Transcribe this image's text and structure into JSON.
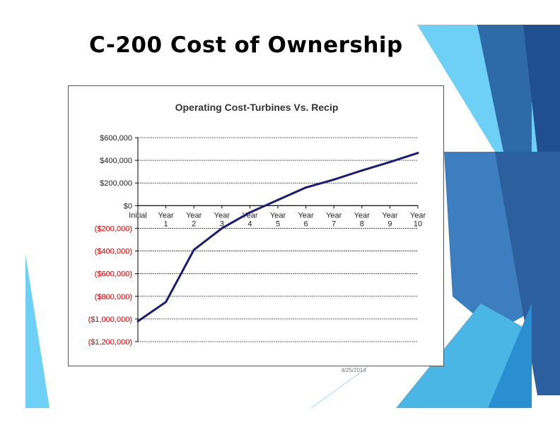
{
  "slide": {
    "title": "C-200 Cost of Ownership",
    "footer_date": "4/25/2014",
    "accent_colors": [
      "#6fd0f5",
      "#2b7dc0",
      "#1f4f8f",
      "#3d6fae",
      "#48b6e8"
    ]
  },
  "chart_data": {
    "type": "line",
    "title": "Operating Cost-Turbines Vs. Recip",
    "xlabel": "",
    "ylabel": "",
    "categories": [
      "Initial",
      "Year 1",
      "Year 2",
      "Year 3",
      "Year 4",
      "Year 5",
      "Year 6",
      "Year 7",
      "Year 8",
      "Year 9",
      "Year 10"
    ],
    "series": [
      {
        "values": [
          -1020000,
          -850000,
          -390000,
          -200000,
          -60000,
          50000,
          160000,
          230000,
          310000,
          385000,
          465000
        ],
        "color": "#1a1a7a"
      }
    ],
    "ylim": [
      -1200000,
      600000
    ],
    "yticks": [
      600000,
      400000,
      200000,
      0,
      -200000,
      -400000,
      -600000,
      -800000,
      -1000000,
      -1200000
    ],
    "ytick_labels": [
      "$600,000",
      "$400,000",
      "$200,000",
      "$0",
      "($200,000)",
      "($400,000)",
      "($600,000)",
      "($800,000)",
      "($1,000,000)",
      "($1,200,000)"
    ],
    "negative_label_color": "#cc0000",
    "positive_label_color": "#222222",
    "grid": true,
    "legend": "none"
  }
}
